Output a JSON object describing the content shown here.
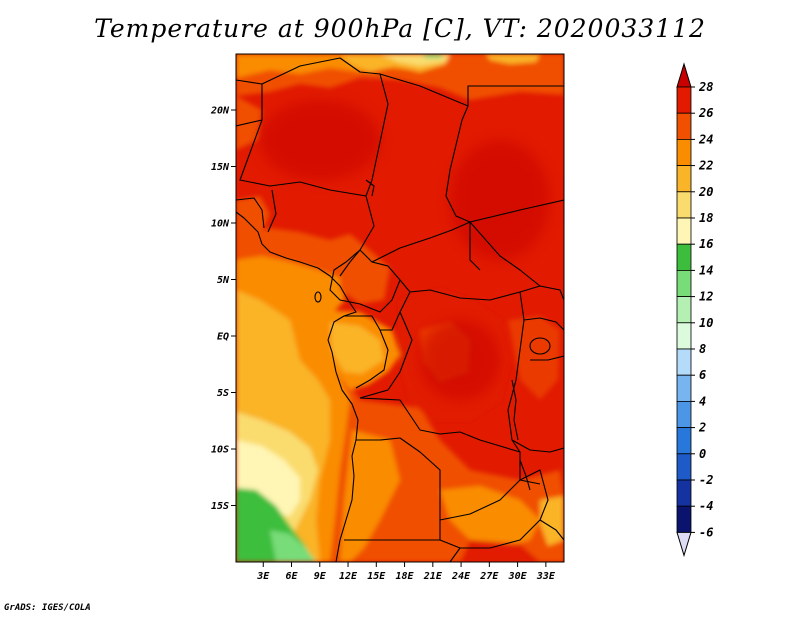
{
  "title": "Temperature at 900hPa [C], VT: 2020033112",
  "credit": "GrADS: IGES/COLA",
  "map": {
    "lat_ticks": [
      {
        "lat": 20,
        "label": "20N"
      },
      {
        "lat": 15,
        "label": "15N"
      },
      {
        "lat": 10,
        "label": "10N"
      },
      {
        "lat": 5,
        "label": "5N"
      },
      {
        "lat": 0,
        "label": "EQ"
      },
      {
        "lat": -5,
        "label": "5S"
      },
      {
        "lat": -10,
        "label": "10S"
      },
      {
        "lat": -15,
        "label": "15S"
      }
    ],
    "lon_ticks": [
      {
        "lon": 3,
        "label": "3E"
      },
      {
        "lon": 6,
        "label": "6E"
      },
      {
        "lon": 9,
        "label": "9E"
      },
      {
        "lon": 12,
        "label": "12E"
      },
      {
        "lon": 15,
        "label": "15E"
      },
      {
        "lon": 18,
        "label": "18E"
      },
      {
        "lon": 21,
        "label": "21E"
      },
      {
        "lon": 24,
        "label": "24E"
      },
      {
        "lon": 27,
        "label": "27E"
      },
      {
        "lon": 30,
        "label": "30E"
      },
      {
        "lon": 33,
        "label": "33E"
      }
    ]
  },
  "colorbar": {
    "levels": [
      {
        "value": 28,
        "label": "28",
        "color": "#c80000"
      },
      {
        "value": 26,
        "label": "26",
        "color": "#e11a00"
      },
      {
        "value": 24,
        "label": "24",
        "color": "#f05000"
      },
      {
        "value": 22,
        "label": "22",
        "color": "#fa8c00"
      },
      {
        "value": 20,
        "label": "20",
        "color": "#fab428"
      },
      {
        "value": 18,
        "label": "18",
        "color": "#fadc6e"
      },
      {
        "value": 16,
        "label": "16",
        "color": "#fff5b4"
      },
      {
        "value": 14,
        "label": "14",
        "color": "#3cbe3c"
      },
      {
        "value": 12,
        "label": "12",
        "color": "#78dc78"
      },
      {
        "value": 10,
        "label": "10",
        "color": "#b4f0b4"
      },
      {
        "value": 8,
        "label": "8",
        "color": "#dcfadc"
      },
      {
        "value": 6,
        "label": "6",
        "color": "#b4dcfa"
      },
      {
        "value": 4,
        "label": "4",
        "color": "#78b4f0"
      },
      {
        "value": 2,
        "label": "2",
        "color": "#4b96e6"
      },
      {
        "value": 0,
        "label": "0",
        "color": "#2878dc"
      },
      {
        "value": -2,
        "label": "-2",
        "color": "#1e5ac8"
      },
      {
        "value": -4,
        "label": "-4",
        "color": "#1432a0"
      },
      {
        "value": -6,
        "label": "-6",
        "color": "#0a146e"
      }
    ],
    "top_color": "#c80000",
    "bottom_color": "#dcdcf5"
  }
}
